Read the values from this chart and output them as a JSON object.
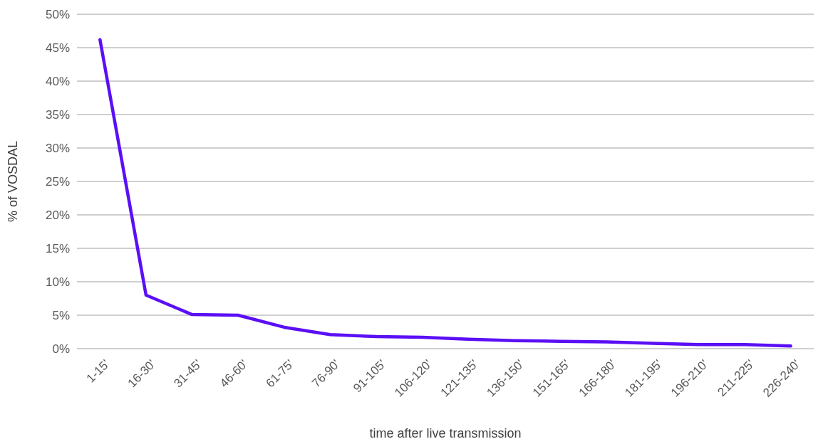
{
  "chart_data": {
    "type": "line",
    "xlabel": "time after live transmission",
    "ylabel": "% of VOSDAL",
    "categories": [
      "1-15'",
      "16-30'",
      "31-45'",
      "46-60'",
      "61-75'",
      "76-90'",
      "91-105'",
      "106-120'",
      "121-135'",
      "136-150'",
      "151-165'",
      "166-180'",
      "181-195'",
      "196-210'",
      "211-225'",
      "226-240'"
    ],
    "series": [
      {
        "color": "#5b0ff5",
        "values": [
          46.2,
          8.0,
          5.1,
          5.0,
          3.2,
          2.1,
          1.8,
          1.7,
          1.4,
          1.2,
          1.1,
          1.0,
          0.8,
          0.6,
          0.6,
          0.4
        ]
      }
    ],
    "ylim": [
      0,
      50
    ],
    "yticks": [
      {
        "value": 0,
        "label": "0%"
      },
      {
        "value": 5,
        "label": "5%"
      },
      {
        "value": 10,
        "label": "10%"
      },
      {
        "value": 15,
        "label": "15%"
      },
      {
        "value": 20,
        "label": "20%"
      },
      {
        "value": 25,
        "label": "25%"
      },
      {
        "value": 30,
        "label": "30%"
      },
      {
        "value": 35,
        "label": "35%"
      },
      {
        "value": 40,
        "label": "40%"
      },
      {
        "value": 45,
        "label": "45%"
      },
      {
        "value": 50,
        "label": "50%"
      }
    ],
    "grid": "y",
    "marker": "none",
    "line_style": "solid"
  }
}
